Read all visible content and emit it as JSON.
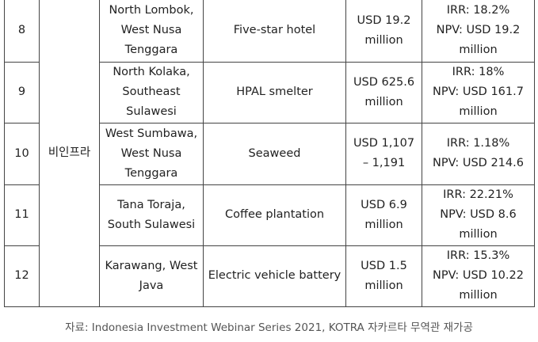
{
  "table": {
    "category": "비인프라",
    "rows": [
      {
        "no": "8",
        "location": "North Lombok,\nWest Nusa\nTenggara",
        "project": "Five-star hotel",
        "investment": "USD 19.2\nmillion",
        "returns": "IRR: 18.2%\nNPV: USD 19.2\nmillion"
      },
      {
        "no": "9",
        "location": "North Kolaka,\nSoutheast\nSulawesi",
        "project": "HPAL smelter",
        "investment": "USD 625.6\nmillion",
        "returns": "IRR: 18%\nNPV: USD 161.7\nmillion"
      },
      {
        "no": "10",
        "location": "West Sumbawa,\nWest Nusa\nTenggara",
        "project": "Seaweed",
        "investment": "USD 1,107\n– 1,191",
        "returns": "IRR: 1.18%\nNPV: USD 214.6"
      },
      {
        "no": "11",
        "location": "Tana Toraja,\nSouth Sulawesi",
        "project": "Coffee plantation",
        "investment": "USD 6.9\nmillion",
        "returns": "IRR: 22.21%\nNPV: USD 8.6\nmillion"
      },
      {
        "no": "12",
        "location": "Karawang, West\nJava",
        "project": "Electric vehicle battery",
        "investment": "USD 1.5\nmillion",
        "returns": "IRR: 15.3%\nNPV: USD 10.22\nmillion"
      }
    ]
  },
  "caption": "자료: Indonesia Investment Webinar Series 2021, KOTRA 자카르타 무역관 재가공"
}
